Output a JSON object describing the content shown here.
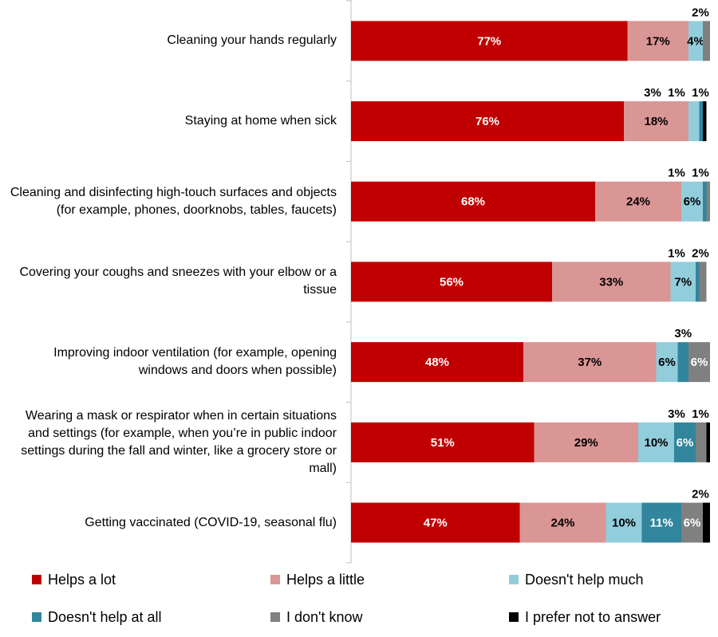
{
  "chart_data": {
    "type": "stacked-bar-horizontal",
    "categories": [
      "Cleaning your hands regularly",
      "Staying at home when sick",
      "Cleaning and disinfecting high-touch surfaces and objects (for example, phones, doorknobs, tables, faucets)",
      "Covering your coughs and sneezes with your elbow or a tissue",
      "Improving indoor ventilation (for example, opening windows and doors when possible)",
      "Wearing a mask or respirator when in certain situations and settings (for example, when you’re in public indoor settings during the fall and winter, like a grocery store or mall)",
      "Getting vaccinated (COVID-19, seasonal flu)"
    ],
    "xlim": [
      0,
      100
    ],
    "series": [
      {
        "name": "Helps a lot",
        "color": "#c00000",
        "values": [
          77,
          76,
          68,
          56,
          48,
          51,
          47
        ],
        "value_labels": [
          "77%",
          "76%",
          "68%",
          "56%",
          "48%",
          "51%",
          "47%"
        ]
      },
      {
        "name": "Helps a little",
        "color": "#da9694",
        "values": [
          17,
          18,
          24,
          33,
          37,
          29,
          24
        ],
        "value_labels": [
          "17%",
          "18%",
          "24%",
          "33%",
          "37%",
          "29%",
          "24%"
        ]
      },
      {
        "name": "Doesn't help much",
        "color": "#92cddc",
        "values": [
          4,
          3,
          6,
          7,
          6,
          10,
          10
        ],
        "value_labels": [
          "4%",
          "3%",
          "6%",
          "7%",
          "6%",
          "10%",
          "10%"
        ]
      },
      {
        "name": "Doesn't help at all",
        "color": "#31859c",
        "values": [
          0,
          1,
          1,
          1,
          3,
          6,
          11
        ],
        "value_labels": [
          null,
          "1%",
          "1%",
          "1%",
          "3%",
          "6%",
          "11%"
        ]
      },
      {
        "name": "I don't know",
        "color": "#808080",
        "values": [
          2,
          0,
          1,
          2,
          6,
          3,
          6
        ],
        "value_labels": [
          "2%",
          null,
          "1%",
          "2%",
          "6%",
          "3%",
          "6%"
        ]
      },
      {
        "name": "I prefer not to answer",
        "color": "#000000",
        "values": [
          0,
          1,
          0,
          0,
          0,
          1,
          2
        ],
        "value_labels": [
          null,
          "1%",
          null,
          null,
          null,
          "1%",
          "2%"
        ]
      }
    ]
  }
}
